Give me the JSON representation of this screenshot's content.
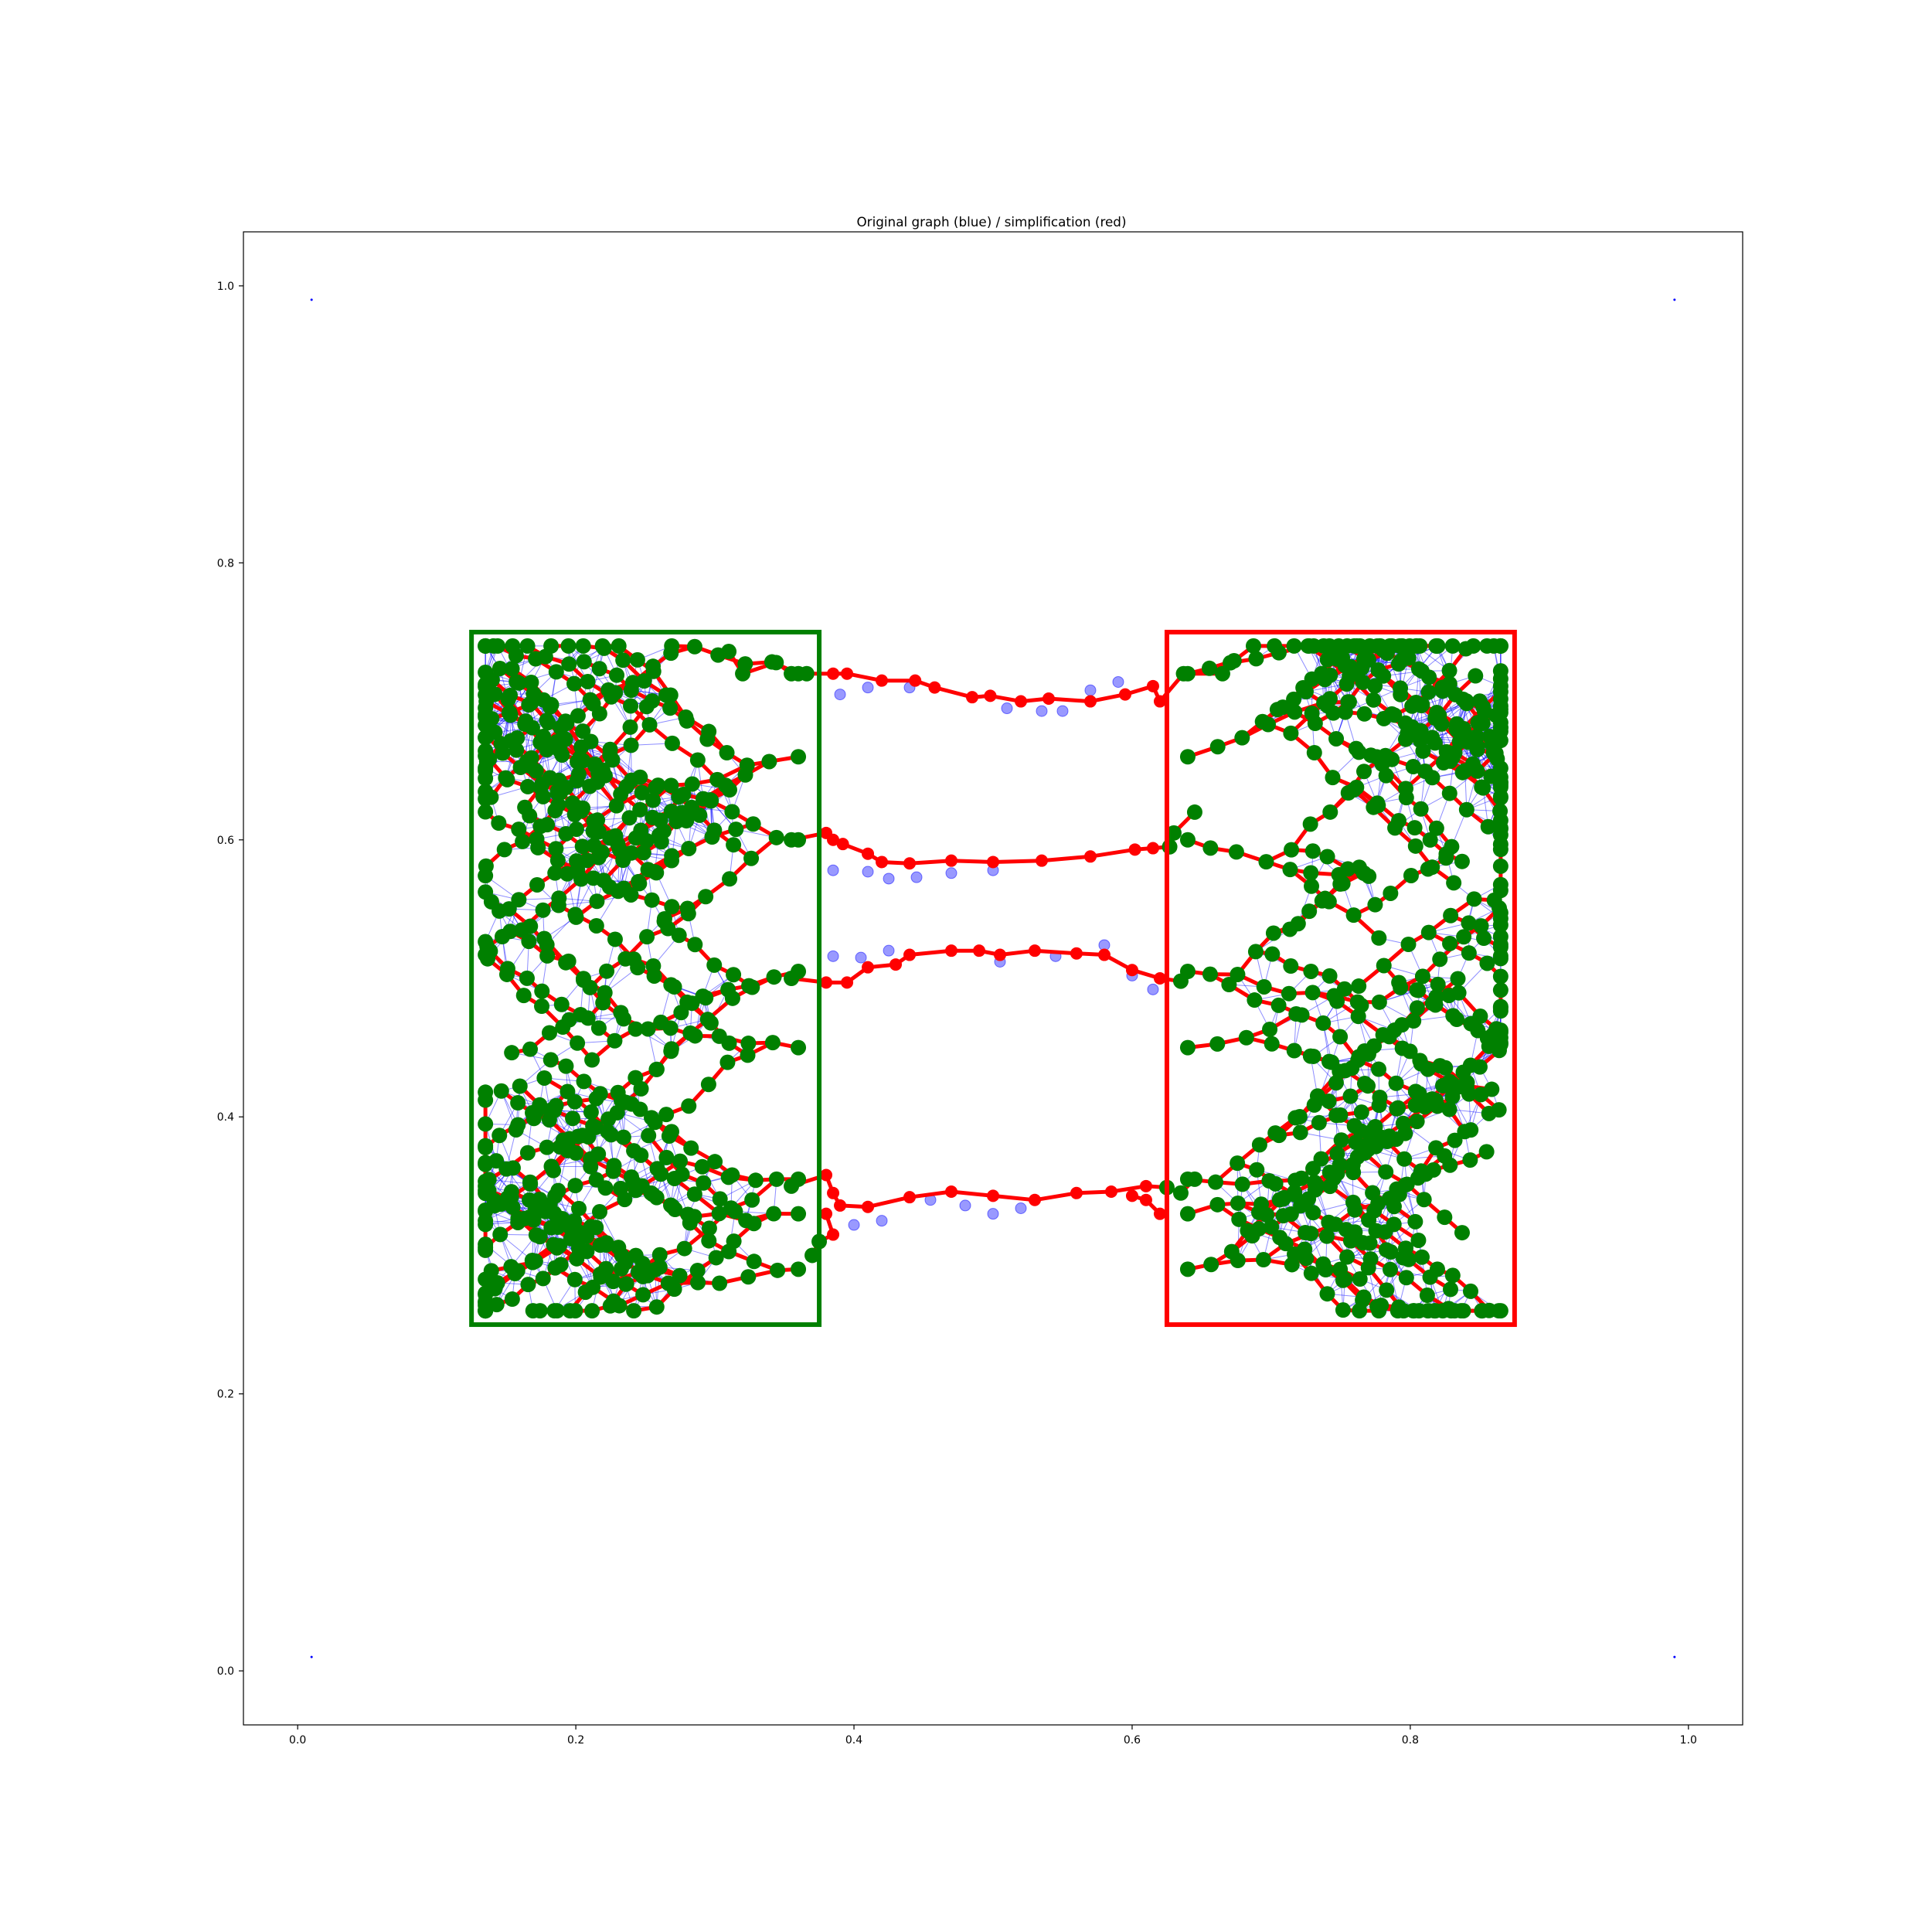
{
  "chart_data": {
    "type": "scatter",
    "title": "Original graph (blue) / simplification (red)",
    "xlabel": "",
    "ylabel": "",
    "xlim": [
      -0.039,
      1.039
    ],
    "ylim": [
      -0.039,
      1.039
    ],
    "xticks": [
      0.0,
      0.2,
      0.4,
      0.6,
      0.8,
      1.0
    ],
    "yticks": [
      0.0,
      0.2,
      0.4,
      0.6,
      0.8,
      1.0
    ],
    "xtick_labels": [
      "0.0",
      "0.2",
      "0.4",
      "0.6",
      "0.8",
      "1.0"
    ],
    "ytick_labels": [
      "0.0",
      "0.2",
      "0.4",
      "0.6",
      "0.8",
      "1.0"
    ],
    "grid": false,
    "colors": {
      "original_graph": "#0000ff",
      "simplification": "#ff0000",
      "left_region": "#008000",
      "right_region": "#ff0000",
      "region_nodes": "#008000"
    },
    "corner_points": [
      [
        0.01,
        0.99
      ],
      [
        0.99,
        0.99
      ],
      [
        0.01,
        0.01
      ],
      [
        0.99,
        0.01
      ]
    ],
    "regions": [
      {
        "color": "green",
        "x0": 0.125,
        "x1": 0.375,
        "y0": 0.25,
        "y1": 0.75
      },
      {
        "color": "red",
        "x0": 0.625,
        "x1": 0.875,
        "y0": 0.25,
        "y1": 0.75
      }
    ],
    "red_paths": [
      [
        [
          0.31,
          0.736
        ],
        [
          0.32,
          0.72
        ],
        [
          0.344,
          0.728
        ],
        [
          0.355,
          0.72
        ],
        [
          0.366,
          0.72
        ],
        [
          0.385,
          0.72
        ],
        [
          0.395,
          0.72
        ],
        [
          0.42,
          0.715
        ],
        [
          0.444,
          0.715
        ],
        [
          0.458,
          0.71
        ],
        [
          0.485,
          0.703
        ],
        [
          0.498,
          0.704
        ],
        [
          0.52,
          0.7
        ],
        [
          0.54,
          0.702
        ],
        [
          0.57,
          0.7
        ],
        [
          0.595,
          0.705
        ],
        [
          0.615,
          0.711
        ],
        [
          0.62,
          0.7
        ],
        [
          0.637,
          0.72
        ],
        [
          0.665,
          0.72
        ]
      ],
      [
        [
          0.355,
          0.6
        ],
        [
          0.38,
          0.605
        ],
        [
          0.385,
          0.6
        ],
        [
          0.392,
          0.597
        ],
        [
          0.41,
          0.59
        ],
        [
          0.42,
          0.584
        ],
        [
          0.44,
          0.583
        ],
        [
          0.47,
          0.585
        ],
        [
          0.5,
          0.584
        ],
        [
          0.535,
          0.585
        ],
        [
          0.57,
          0.588
        ],
        [
          0.602,
          0.593
        ],
        [
          0.615,
          0.594
        ],
        [
          0.627,
          0.595
        ],
        [
          0.63,
          0.605
        ],
        [
          0.645,
          0.62
        ]
      ],
      [
        [
          0.355,
          0.5
        ],
        [
          0.38,
          0.497
        ],
        [
          0.395,
          0.497
        ],
        [
          0.41,
          0.508
        ],
        [
          0.43,
          0.51
        ],
        [
          0.44,
          0.517
        ],
        [
          0.47,
          0.52
        ],
        [
          0.49,
          0.52
        ],
        [
          0.505,
          0.517
        ],
        [
          0.53,
          0.52
        ],
        [
          0.56,
          0.518
        ],
        [
          0.58,
          0.517
        ],
        [
          0.6,
          0.506
        ],
        [
          0.62,
          0.5
        ],
        [
          0.635,
          0.498
        ]
      ],
      [
        [
          0.355,
          0.35
        ],
        [
          0.38,
          0.358
        ],
        [
          0.385,
          0.345
        ],
        [
          0.39,
          0.336
        ],
        [
          0.41,
          0.335
        ],
        [
          0.44,
          0.342
        ],
        [
          0.47,
          0.346
        ],
        [
          0.5,
          0.343
        ],
        [
          0.53,
          0.34
        ],
        [
          0.56,
          0.345
        ],
        [
          0.585,
          0.346
        ],
        [
          0.61,
          0.35
        ],
        [
          0.625,
          0.349
        ],
        [
          0.635,
          0.345
        ],
        [
          0.645,
          0.355
        ]
      ],
      [
        [
          0.38,
          0.33
        ],
        [
          0.385,
          0.315
        ],
        [
          0.375,
          0.31
        ],
        [
          0.37,
          0.3
        ]
      ],
      [
        [
          0.62,
          0.33
        ],
        [
          0.61,
          0.34
        ],
        [
          0.6,
          0.343
        ]
      ]
    ],
    "blue_points": [
      [
        0.39,
        0.705
      ],
      [
        0.41,
        0.71
      ],
      [
        0.44,
        0.71
      ],
      [
        0.51,
        0.695
      ],
      [
        0.535,
        0.693
      ],
      [
        0.55,
        0.693
      ],
      [
        0.57,
        0.708
      ],
      [
        0.59,
        0.714
      ],
      [
        0.385,
        0.578
      ],
      [
        0.41,
        0.577
      ],
      [
        0.425,
        0.572
      ],
      [
        0.445,
        0.573
      ],
      [
        0.47,
        0.576
      ],
      [
        0.5,
        0.578
      ],
      [
        0.385,
        0.516
      ],
      [
        0.405,
        0.515
      ],
      [
        0.425,
        0.52
      ],
      [
        0.505,
        0.512
      ],
      [
        0.545,
        0.516
      ],
      [
        0.58,
        0.524
      ],
      [
        0.6,
        0.502
      ],
      [
        0.615,
        0.492
      ],
      [
        0.4,
        0.322
      ],
      [
        0.42,
        0.325
      ],
      [
        0.455,
        0.34
      ],
      [
        0.48,
        0.336
      ],
      [
        0.5,
        0.33
      ],
      [
        0.52,
        0.334
      ]
    ],
    "series": [
      {
        "name": "Original graph (blue)"
      },
      {
        "name": "simplification (red)"
      }
    ]
  }
}
